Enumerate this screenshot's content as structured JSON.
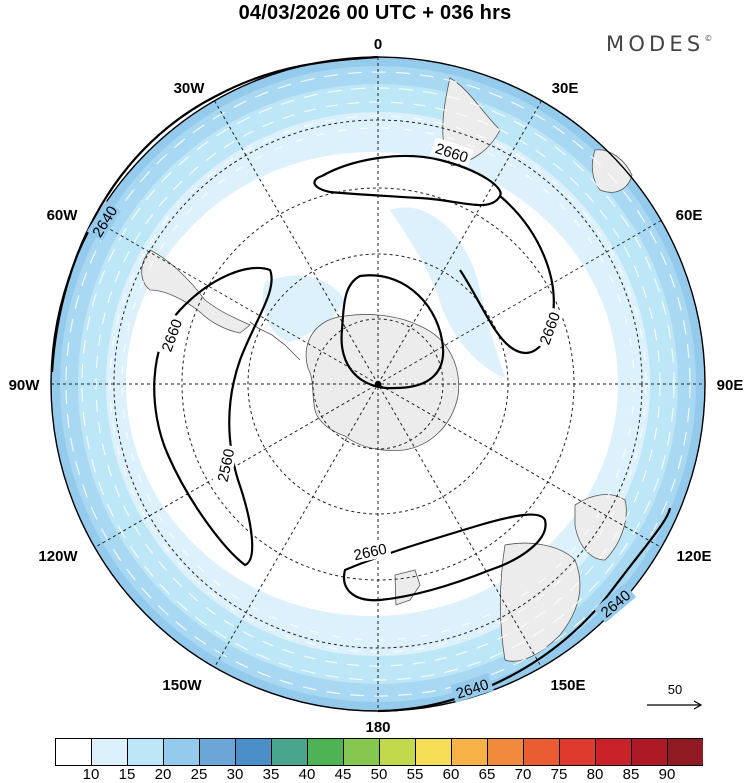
{
  "header": {
    "title": "04/03/2026  00 UTC  + 036 hrs",
    "brand": "MODES",
    "brand_mark": "©"
  },
  "map": {
    "projection": "south polar stereographic",
    "longitude_labels": {
      "top": "0",
      "bottom": "180",
      "left": "90W",
      "right": "90E",
      "upper_left_1": "30W",
      "upper_left_2": "60W",
      "upper_right_1": "30E",
      "upper_right_2": "60E",
      "lower_left_1": "120W",
      "lower_left_2": "150W",
      "lower_right_1": "120E",
      "lower_right_2": "150E"
    },
    "contour_labels": [
      "2640",
      "2660",
      "2660",
      "2660",
      "2560",
      "2660",
      "2640"
    ],
    "wind_speed_fill": "wind speed shading (light blue bands)",
    "vector_reference": "50"
  },
  "colorbar": {
    "labels": [
      "10",
      "15",
      "20",
      "25",
      "30",
      "35",
      "40",
      "45",
      "50",
      "55",
      "60",
      "65",
      "70",
      "75",
      "80",
      "85",
      "90"
    ],
    "colors": [
      "#ffffff",
      "#dcf1fb",
      "#bde6f7",
      "#94cbed",
      "#6ca6d9",
      "#4b8fc8",
      "#4aa58f",
      "#4fb254",
      "#86c84f",
      "#c3d94c",
      "#f5de55",
      "#f5b247",
      "#f08a3c",
      "#ea5d33",
      "#de3b2e",
      "#c9222b",
      "#ad1a26",
      "#911b22"
    ]
  }
}
